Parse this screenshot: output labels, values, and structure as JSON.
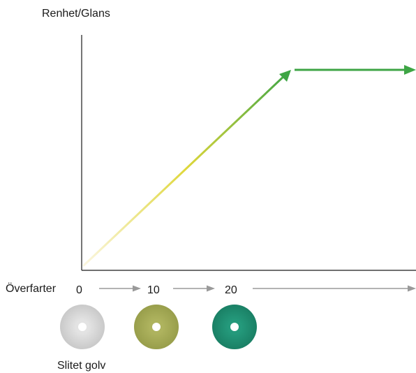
{
  "diagram": {
    "y_axis_label": "Renhet/Glans",
    "x_axis_label": "Överfarter",
    "passes": [
      "0",
      "10",
      "20"
    ],
    "caption": "Slitet golv",
    "pads": [
      {
        "name": "pad-white-icon",
        "color": "#d3d3d3"
      },
      {
        "name": "pad-green-icon",
        "color": "#a4a955"
      },
      {
        "name": "pad-teal-icon",
        "color": "#1e8f73"
      }
    ],
    "colors": {
      "gradient_start": "#fbf6e0",
      "gradient_mid": "#dfd73a",
      "gradient_end": "#3ea545",
      "axis": "#1a1a1a",
      "flow_arrow": "#9a9a9a"
    }
  }
}
